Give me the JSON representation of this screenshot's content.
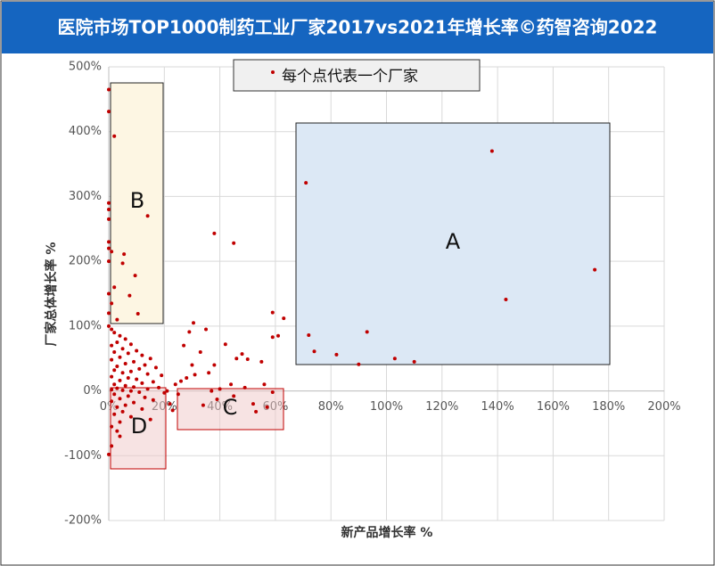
{
  "chart_data": {
    "type": "scatter",
    "title": "医院市场TOP1000制药工业厂家2017vs2021年增长率©药智咨询2022",
    "x_label": "新产品增长率 %",
    "y_label": "厂家总体增长率 %",
    "xlim": [
      0,
      200
    ],
    "ylim": [
      -200,
      500
    ],
    "grid": true,
    "xticks": [
      {
        "value": 0,
        "label": "0%"
      },
      {
        "value": 20,
        "label": "20%"
      },
      {
        "value": 40,
        "label": "40%"
      },
      {
        "value": 60,
        "label": "60%"
      },
      {
        "value": 80,
        "label": "80%"
      },
      {
        "value": 100,
        "label": "100%"
      },
      {
        "value": 120,
        "label": "120%"
      },
      {
        "value": 140,
        "label": "140%"
      },
      {
        "value": 160,
        "label": "160%"
      },
      {
        "value": 180,
        "label": "180%"
      },
      {
        "value": 200,
        "label": "200%"
      }
    ],
    "yticks": [
      {
        "value": -200,
        "label": "-200%"
      },
      {
        "value": -100,
        "label": "-100%"
      },
      {
        "value": 0,
        "label": "0%"
      },
      {
        "value": 100,
        "label": "100%"
      },
      {
        "value": 200,
        "label": "200%"
      },
      {
        "value": 300,
        "label": "300%"
      },
      {
        "value": 400,
        "label": "400%"
      },
      {
        "value": 500,
        "label": "500%"
      }
    ],
    "annotations": [
      "A",
      "B",
      "C",
      "D"
    ],
    "series": [
      {
        "name": "每个点代表一个厂家",
        "color": "#c00000",
        "x": [
          138,
          71,
          175,
          143,
          93,
          72,
          74,
          82,
          90,
          103,
          110,
          38,
          45,
          2,
          0,
          0,
          14,
          5.5,
          5,
          7.5,
          9.5,
          10.5,
          0,
          0,
          0,
          0,
          0,
          1,
          0,
          2,
          0,
          1,
          0,
          3,
          0,
          1,
          2,
          4,
          6,
          3,
          8,
          1,
          5,
          10,
          2,
          7,
          12,
          4,
          15,
          1,
          9,
          6,
          13,
          3,
          17,
          11,
          2,
          8,
          5,
          14,
          19,
          1,
          7,
          10,
          4,
          16,
          12,
          2,
          6,
          9,
          18,
          3,
          14,
          1,
          5,
          8,
          11,
          20,
          2,
          7,
          13,
          4,
          16,
          1,
          9,
          6,
          3,
          12,
          5,
          2,
          8,
          15,
          4,
          1,
          3,
          4,
          1,
          0,
          22,
          24,
          26,
          28,
          21,
          23,
          25,
          30,
          33,
          35,
          29,
          30.5,
          27,
          31,
          36,
          38,
          40,
          42,
          44,
          46,
          48,
          50,
          52,
          53,
          55,
          56,
          57,
          59,
          59,
          61,
          59,
          63,
          37,
          39,
          34,
          45,
          49
        ],
        "values": [
          370,
          321,
          187,
          141,
          91,
          86,
          61,
          56,
          41,
          50,
          45,
          243,
          228,
          393,
          431,
          465,
          270,
          211,
          197,
          147,
          178,
          119,
          290,
          280,
          265,
          230,
          220,
          215,
          200,
          160,
          150,
          135,
          120,
          110,
          100,
          95,
          90,
          85,
          80,
          75,
          72,
          70,
          65,
          62,
          60,
          58,
          55,
          52,
          50,
          48,
          45,
          42,
          40,
          38,
          36,
          34,
          32,
          30,
          28,
          26,
          24,
          22,
          20,
          18,
          16,
          14,
          12,
          10,
          8,
          6,
          5,
          4,
          3,
          2,
          1,
          0,
          -2,
          -3,
          -5,
          -8,
          -10,
          -12,
          -14,
          -16,
          -18,
          -22,
          -25,
          -28,
          -32,
          -36,
          -40,
          -44,
          -48,
          -55,
          -62,
          -70,
          -85,
          -98,
          -20,
          10,
          15,
          20,
          0,
          -30,
          -5,
          40,
          60,
          95,
          91,
          105,
          70,
          25,
          28,
          40,
          3,
          72,
          10,
          50,
          57,
          49,
          -20,
          -32,
          45,
          10,
          -25,
          -2,
          83,
          85,
          121,
          112,
          0,
          -13,
          -22,
          -8,
          5
        ]
      }
    ]
  }
}
